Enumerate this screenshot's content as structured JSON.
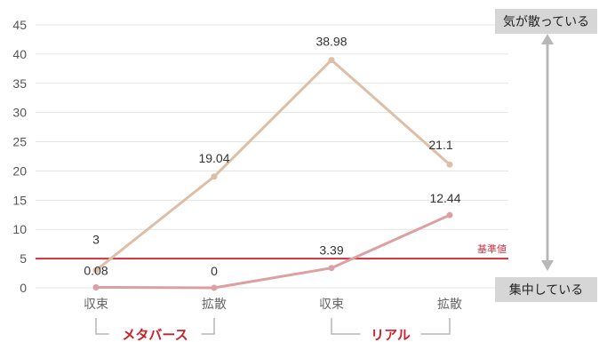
{
  "chart_data": {
    "type": "line",
    "categories": [
      "収束",
      "拡散",
      "収束",
      "拡散"
    ],
    "ylim": [
      0,
      45
    ],
    "yticks": [
      0,
      5,
      10,
      15,
      20,
      25,
      30,
      35,
      40,
      45
    ],
    "grid": true,
    "series": [
      {
        "values": [
          3,
          19.04,
          38.98,
          21.1
        ],
        "labels": [
          "3",
          "19.04",
          "38.98",
          "21.1"
        ],
        "color": "#dcbfa6"
      },
      {
        "values": [
          0.08,
          0,
          3.39,
          12.44
        ],
        "labels": [
          "0.08",
          "0",
          "3.39",
          "12.44"
        ],
        "color": "#dca0a3"
      }
    ],
    "reference_line": {
      "value": 5,
      "label": "基準値",
      "color": "#cc3340"
    },
    "groups": [
      {
        "label": "メタバース",
        "color": "#cc1f2a"
      },
      {
        "label": "リアル",
        "color": "#cc1f2a"
      }
    ],
    "annotations": {
      "top": "気が散っている",
      "bottom": "集中している"
    }
  }
}
